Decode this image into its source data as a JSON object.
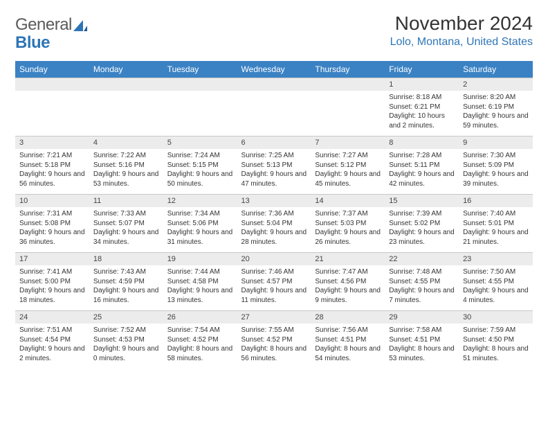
{
  "logo": {
    "line1": "General",
    "line2": "Blue"
  },
  "header": {
    "month": "November 2024",
    "location": "Lolo, Montana, United States"
  },
  "colors": {
    "header_bg": "#3b82c4",
    "header_text": "#ffffff",
    "daynum_bg": "#ececec",
    "border": "#c8c8c8",
    "logo_blue": "#2e75b6",
    "text": "#333333"
  },
  "weekday_labels": [
    "Sunday",
    "Monday",
    "Tuesday",
    "Wednesday",
    "Thursday",
    "Friday",
    "Saturday"
  ],
  "weeks": [
    [
      null,
      null,
      null,
      null,
      null,
      {
        "n": "1",
        "sr": "8:18 AM",
        "ss": "6:21 PM",
        "dl": "10 hours and 2 minutes."
      },
      {
        "n": "2",
        "sr": "8:20 AM",
        "ss": "6:19 PM",
        "dl": "9 hours and 59 minutes."
      }
    ],
    [
      {
        "n": "3",
        "sr": "7:21 AM",
        "ss": "5:18 PM",
        "dl": "9 hours and 56 minutes."
      },
      {
        "n": "4",
        "sr": "7:22 AM",
        "ss": "5:16 PM",
        "dl": "9 hours and 53 minutes."
      },
      {
        "n": "5",
        "sr": "7:24 AM",
        "ss": "5:15 PM",
        "dl": "9 hours and 50 minutes."
      },
      {
        "n": "6",
        "sr": "7:25 AM",
        "ss": "5:13 PM",
        "dl": "9 hours and 47 minutes."
      },
      {
        "n": "7",
        "sr": "7:27 AM",
        "ss": "5:12 PM",
        "dl": "9 hours and 45 minutes."
      },
      {
        "n": "8",
        "sr": "7:28 AM",
        "ss": "5:11 PM",
        "dl": "9 hours and 42 minutes."
      },
      {
        "n": "9",
        "sr": "7:30 AM",
        "ss": "5:09 PM",
        "dl": "9 hours and 39 minutes."
      }
    ],
    [
      {
        "n": "10",
        "sr": "7:31 AM",
        "ss": "5:08 PM",
        "dl": "9 hours and 36 minutes."
      },
      {
        "n": "11",
        "sr": "7:33 AM",
        "ss": "5:07 PM",
        "dl": "9 hours and 34 minutes."
      },
      {
        "n": "12",
        "sr": "7:34 AM",
        "ss": "5:06 PM",
        "dl": "9 hours and 31 minutes."
      },
      {
        "n": "13",
        "sr": "7:36 AM",
        "ss": "5:04 PM",
        "dl": "9 hours and 28 minutes."
      },
      {
        "n": "14",
        "sr": "7:37 AM",
        "ss": "5:03 PM",
        "dl": "9 hours and 26 minutes."
      },
      {
        "n": "15",
        "sr": "7:39 AM",
        "ss": "5:02 PM",
        "dl": "9 hours and 23 minutes."
      },
      {
        "n": "16",
        "sr": "7:40 AM",
        "ss": "5:01 PM",
        "dl": "9 hours and 21 minutes."
      }
    ],
    [
      {
        "n": "17",
        "sr": "7:41 AM",
        "ss": "5:00 PM",
        "dl": "9 hours and 18 minutes."
      },
      {
        "n": "18",
        "sr": "7:43 AM",
        "ss": "4:59 PM",
        "dl": "9 hours and 16 minutes."
      },
      {
        "n": "19",
        "sr": "7:44 AM",
        "ss": "4:58 PM",
        "dl": "9 hours and 13 minutes."
      },
      {
        "n": "20",
        "sr": "7:46 AM",
        "ss": "4:57 PM",
        "dl": "9 hours and 11 minutes."
      },
      {
        "n": "21",
        "sr": "7:47 AM",
        "ss": "4:56 PM",
        "dl": "9 hours and 9 minutes."
      },
      {
        "n": "22",
        "sr": "7:48 AM",
        "ss": "4:55 PM",
        "dl": "9 hours and 7 minutes."
      },
      {
        "n": "23",
        "sr": "7:50 AM",
        "ss": "4:55 PM",
        "dl": "9 hours and 4 minutes."
      }
    ],
    [
      {
        "n": "24",
        "sr": "7:51 AM",
        "ss": "4:54 PM",
        "dl": "9 hours and 2 minutes."
      },
      {
        "n": "25",
        "sr": "7:52 AM",
        "ss": "4:53 PM",
        "dl": "9 hours and 0 minutes."
      },
      {
        "n": "26",
        "sr": "7:54 AM",
        "ss": "4:52 PM",
        "dl": "8 hours and 58 minutes."
      },
      {
        "n": "27",
        "sr": "7:55 AM",
        "ss": "4:52 PM",
        "dl": "8 hours and 56 minutes."
      },
      {
        "n": "28",
        "sr": "7:56 AM",
        "ss": "4:51 PM",
        "dl": "8 hours and 54 minutes."
      },
      {
        "n": "29",
        "sr": "7:58 AM",
        "ss": "4:51 PM",
        "dl": "8 hours and 53 minutes."
      },
      {
        "n": "30",
        "sr": "7:59 AM",
        "ss": "4:50 PM",
        "dl": "8 hours and 51 minutes."
      }
    ]
  ],
  "labels": {
    "sunrise": "Sunrise: ",
    "sunset": "Sunset: ",
    "daylight": "Daylight: "
  }
}
